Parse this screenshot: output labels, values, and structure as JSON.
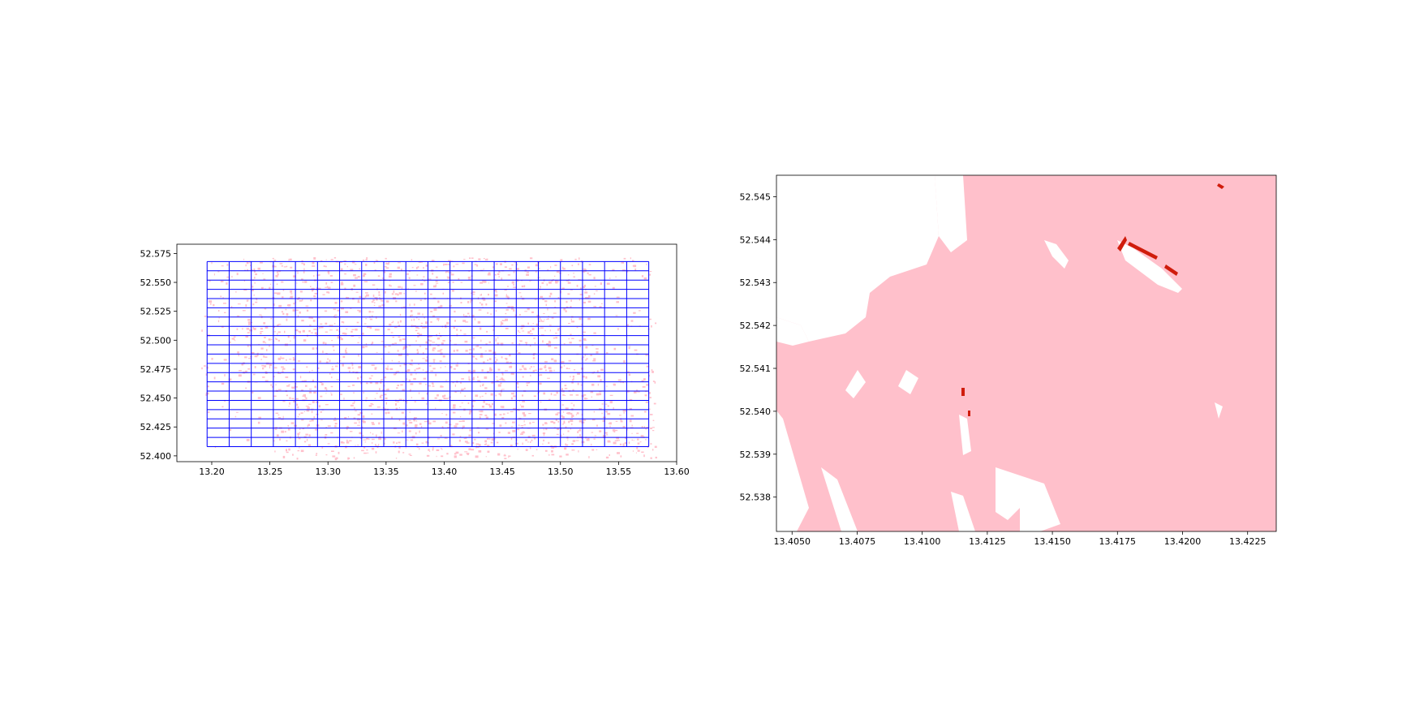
{
  "colors": {
    "area_fill": "#ffc0cb",
    "grid_lines": "#0000ff",
    "highlight": "#d01c0c",
    "axis": "#000000",
    "background": "#ffffff"
  },
  "chart_data": [
    {
      "type": "map",
      "title": "",
      "xlabel": "",
      "ylabel": "",
      "xlim": [
        13.17,
        13.6
      ],
      "ylim": [
        52.395,
        52.583
      ],
      "x_ticks": [
        "13.20",
        "13.25",
        "13.30",
        "13.35",
        "13.40",
        "13.45",
        "13.50",
        "13.55",
        "13.60"
      ],
      "y_ticks": [
        "52.400",
        "52.425",
        "52.450",
        "52.475",
        "52.500",
        "52.525",
        "52.550",
        "52.575"
      ],
      "grid": {
        "x_edges": [
          13.196,
          13.215,
          13.234,
          13.253,
          13.272,
          13.291,
          13.31,
          13.329,
          13.348,
          13.367,
          13.386,
          13.405,
          13.424,
          13.443,
          13.462,
          13.481,
          13.5,
          13.519,
          13.538,
          13.557,
          13.576
        ],
        "y_edges": [
          52.408,
          52.416,
          52.424,
          52.432,
          52.44,
          52.448,
          52.456,
          52.464,
          52.472,
          52.48,
          52.488,
          52.496,
          52.504,
          52.512,
          52.52,
          52.528,
          52.536,
          52.544,
          52.552,
          52.56,
          52.568
        ]
      },
      "grid_on": false,
      "legend": "none"
    },
    {
      "type": "map",
      "title": "",
      "xlabel": "",
      "ylabel": "",
      "xlim": [
        13.4044,
        13.4236
      ],
      "ylim": [
        52.5372,
        52.5455
      ],
      "x_ticks": [
        "13.4050",
        "13.4075",
        "13.4100",
        "13.4125",
        "13.4150",
        "13.4175",
        "13.4200",
        "13.4225"
      ],
      "y_ticks": [
        "52.538",
        "52.539",
        "52.540",
        "52.541",
        "52.542",
        "52.543",
        "52.544",
        "52.545"
      ],
      "grid_on": false,
      "legend": "none"
    }
  ]
}
